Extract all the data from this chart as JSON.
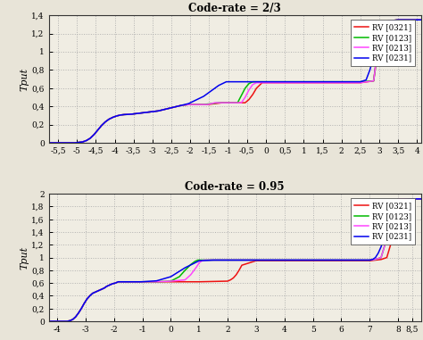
{
  "plot1": {
    "title": "Code-rate = 2/3",
    "xlim": [
      -5.75,
      4.1
    ],
    "ylim": [
      0,
      1.4
    ],
    "xticks": [
      -5.5,
      -5,
      -4.5,
      -4,
      -3.5,
      -3,
      -2.5,
      -2,
      -1.5,
      -1,
      -0.5,
      0,
      0.5,
      1,
      1.5,
      2,
      2.5,
      3,
      3.5,
      4
    ],
    "xticklabels": [
      "-5,5",
      "-5",
      "-4,5",
      "-4",
      "-3,5",
      "-3",
      "-2,5",
      "-2",
      "-1,5",
      "-1",
      "-0,5",
      "0",
      "0,5",
      "1",
      "1,5",
      "2",
      "2,5",
      "3",
      "3,5",
      "4"
    ],
    "yticks": [
      0,
      0.2,
      0.4,
      0.6,
      0.8,
      1.0,
      1.2,
      1.4
    ],
    "yticklabels": [
      "0",
      "0,2",
      "0,4",
      "0,6",
      "0,8",
      "1",
      "1,2",
      "1,4"
    ],
    "curves": {
      "RV [0321]": {
        "color": "#ee1111",
        "x": [
          -5.75,
          -5.05,
          -4.95,
          -4.85,
          -4.75,
          -4.65,
          -4.55,
          -4.45,
          -4.35,
          -4.25,
          -4.15,
          -4.05,
          -3.95,
          -3.85,
          -3.75,
          -3.65,
          -3.55,
          -3.45,
          -3.35,
          -3.25,
          -3.15,
          -3.05,
          -2.95,
          -2.85,
          -2.75,
          -2.65,
          -2.55,
          -2.45,
          -2.35,
          -2.25,
          -2.15,
          -2.05,
          -1.95,
          -1.85,
          -1.75,
          -1.65,
          -1.55,
          -1.45,
          -1.35,
          -1.25,
          -1.15,
          -1.05,
          -0.95,
          -0.85,
          -0.75,
          -0.65,
          -0.55,
          -0.45,
          -0.35,
          -0.25,
          -0.1,
          0.5,
          1.0,
          2.0,
          2.5,
          2.85,
          2.95,
          3.1,
          3.5,
          4.1
        ],
        "y": [
          0.0,
          0.0,
          0.005,
          0.01,
          0.025,
          0.05,
          0.09,
          0.14,
          0.19,
          0.23,
          0.26,
          0.28,
          0.295,
          0.305,
          0.31,
          0.312,
          0.315,
          0.32,
          0.325,
          0.33,
          0.335,
          0.34,
          0.345,
          0.35,
          0.36,
          0.37,
          0.38,
          0.39,
          0.4,
          0.41,
          0.415,
          0.42,
          0.42,
          0.42,
          0.42,
          0.42,
          0.42,
          0.425,
          0.43,
          0.435,
          0.44,
          0.44,
          0.44,
          0.44,
          0.44,
          0.44,
          0.44,
          0.475,
          0.53,
          0.6,
          0.66,
          0.66,
          0.66,
          0.66,
          0.66,
          0.68,
          1.0,
          1.33,
          1.35,
          1.35
        ]
      },
      "RV [0123]": {
        "color": "#00bb00",
        "x": [
          -5.75,
          -5.05,
          -4.95,
          -4.85,
          -4.75,
          -4.65,
          -4.55,
          -4.45,
          -4.35,
          -4.25,
          -4.15,
          -4.05,
          -3.95,
          -3.85,
          -3.75,
          -3.65,
          -3.55,
          -3.45,
          -3.35,
          -3.25,
          -3.15,
          -3.05,
          -2.95,
          -2.85,
          -2.75,
          -2.65,
          -2.55,
          -2.45,
          -2.35,
          -2.25,
          -2.15,
          -2.05,
          -1.95,
          -1.85,
          -1.75,
          -1.65,
          -1.55,
          -1.45,
          -1.35,
          -1.25,
          -1.15,
          -1.05,
          -0.95,
          -0.85,
          -0.75,
          -0.65,
          -0.55,
          -0.45,
          -0.35,
          -0.1,
          0.5,
          1.0,
          2.0,
          2.5,
          2.85,
          2.95,
          3.1,
          3.5,
          4.1
        ],
        "y": [
          0.0,
          0.0,
          0.005,
          0.01,
          0.025,
          0.05,
          0.09,
          0.14,
          0.19,
          0.23,
          0.26,
          0.28,
          0.295,
          0.305,
          0.31,
          0.312,
          0.315,
          0.32,
          0.325,
          0.33,
          0.335,
          0.34,
          0.345,
          0.35,
          0.36,
          0.37,
          0.38,
          0.39,
          0.4,
          0.41,
          0.415,
          0.42,
          0.42,
          0.42,
          0.42,
          0.42,
          0.425,
          0.43,
          0.435,
          0.44,
          0.44,
          0.44,
          0.44,
          0.44,
          0.44,
          0.52,
          0.6,
          0.65,
          0.67,
          0.67,
          0.67,
          0.67,
          0.67,
          0.67,
          0.68,
          1.0,
          1.33,
          1.35,
          1.35
        ]
      },
      "RV [0213]": {
        "color": "#ff44ff",
        "x": [
          -5.75,
          -5.05,
          -4.95,
          -4.85,
          -4.75,
          -4.65,
          -4.55,
          -4.45,
          -4.35,
          -4.25,
          -4.15,
          -4.05,
          -3.95,
          -3.85,
          -3.75,
          -3.65,
          -3.55,
          -3.45,
          -3.35,
          -3.25,
          -3.15,
          -3.05,
          -2.95,
          -2.85,
          -2.75,
          -2.65,
          -2.55,
          -2.45,
          -2.35,
          -2.25,
          -2.15,
          -2.05,
          -1.95,
          -1.85,
          -1.75,
          -1.65,
          -1.55,
          -1.45,
          -1.35,
          -1.25,
          -1.15,
          -1.05,
          -0.95,
          -0.85,
          -0.75,
          -0.65,
          -0.55,
          -0.45,
          -0.35,
          -0.25,
          -0.1,
          0.5,
          1.0,
          2.0,
          2.5,
          2.85,
          2.95,
          3.1,
          3.5,
          4.1
        ],
        "y": [
          0.0,
          0.0,
          0.005,
          0.01,
          0.025,
          0.05,
          0.09,
          0.14,
          0.19,
          0.23,
          0.26,
          0.28,
          0.295,
          0.305,
          0.31,
          0.312,
          0.315,
          0.32,
          0.325,
          0.33,
          0.335,
          0.34,
          0.345,
          0.35,
          0.36,
          0.37,
          0.38,
          0.39,
          0.4,
          0.41,
          0.415,
          0.42,
          0.42,
          0.42,
          0.42,
          0.42,
          0.42,
          0.43,
          0.44,
          0.44,
          0.44,
          0.44,
          0.44,
          0.44,
          0.44,
          0.44,
          0.5,
          0.58,
          0.64,
          0.66,
          0.66,
          0.66,
          0.66,
          0.66,
          0.66,
          0.68,
          1.0,
          1.33,
          1.35,
          1.35
        ]
      },
      "RV [0231]": {
        "color": "#0000ee",
        "x": [
          -5.75,
          -5.05,
          -4.95,
          -4.85,
          -4.75,
          -4.65,
          -4.55,
          -4.45,
          -4.35,
          -4.25,
          -4.15,
          -4.05,
          -3.95,
          -3.85,
          -3.75,
          -3.65,
          -3.55,
          -3.45,
          -3.35,
          -3.25,
          -3.15,
          -3.05,
          -2.95,
          -2.85,
          -2.75,
          -2.65,
          -2.55,
          -2.45,
          -2.35,
          -2.25,
          -2.15,
          -2.05,
          -1.95,
          -1.85,
          -1.75,
          -1.65,
          -1.55,
          -1.45,
          -1.35,
          -1.25,
          -1.15,
          -1.05,
          -0.95,
          -0.85,
          -0.75,
          -0.65,
          -0.55,
          -0.45,
          -0.35,
          -0.1,
          0.5,
          1.0,
          2.0,
          2.5,
          2.65,
          2.75,
          2.85,
          2.95,
          3.1,
          3.5,
          4.1
        ],
        "y": [
          0.0,
          0.0,
          0.005,
          0.01,
          0.025,
          0.05,
          0.09,
          0.14,
          0.19,
          0.23,
          0.26,
          0.28,
          0.295,
          0.305,
          0.31,
          0.312,
          0.315,
          0.32,
          0.325,
          0.33,
          0.335,
          0.34,
          0.345,
          0.35,
          0.36,
          0.37,
          0.38,
          0.39,
          0.4,
          0.41,
          0.42,
          0.43,
          0.45,
          0.47,
          0.49,
          0.51,
          0.54,
          0.57,
          0.6,
          0.63,
          0.65,
          0.67,
          0.67,
          0.67,
          0.67,
          0.67,
          0.67,
          0.67,
          0.67,
          0.67,
          0.67,
          0.67,
          0.67,
          0.67,
          0.69,
          0.8,
          0.95,
          1.15,
          1.33,
          1.35,
          1.35
        ]
      }
    }
  },
  "plot2": {
    "title": "Code-rate = 0.95",
    "xlim": [
      -4.3,
      8.8
    ],
    "ylim": [
      0,
      2.0
    ],
    "xticks": [
      -4,
      -3,
      -2,
      -1,
      0,
      1,
      2,
      3,
      4,
      5,
      6,
      7,
      8,
      8.5
    ],
    "xticklabels": [
      "-4",
      "-3",
      "-2",
      "-1",
      "0",
      "1",
      "2",
      "3",
      "4",
      "5",
      "6",
      "7",
      "8",
      "8,5"
    ],
    "yticks": [
      0,
      0.2,
      0.4,
      0.6,
      0.8,
      1.0,
      1.2,
      1.4,
      1.6,
      1.8,
      2.0
    ],
    "yticklabels": [
      "0",
      "0,2",
      "0,4",
      "0,6",
      "0,8",
      "1",
      "1,2",
      "1,4",
      "1,6",
      "1,8",
      "2"
    ],
    "curves": {
      "RV [0321]": {
        "color": "#ee1111",
        "x": [
          -4.3,
          -3.65,
          -3.55,
          -3.45,
          -3.35,
          -3.25,
          -3.15,
          -3.05,
          -2.95,
          -2.85,
          -2.75,
          -2.65,
          -2.55,
          -2.45,
          -2.35,
          -2.25,
          -2.15,
          -2.05,
          -1.95,
          -1.85,
          -1.75,
          -1.65,
          -1.55,
          -1.45,
          -1.35,
          -1.25,
          -1.15,
          -1.05,
          -0.5,
          0.0,
          0.5,
          1.0,
          1.5,
          2.0,
          2.1,
          2.2,
          2.3,
          2.4,
          2.5,
          3.0,
          4.0,
          5.0,
          6.0,
          7.0,
          7.2,
          7.4,
          7.6,
          7.8,
          8.0,
          8.5,
          8.8
        ],
        "y": [
          0.0,
          0.0,
          0.01,
          0.03,
          0.07,
          0.13,
          0.2,
          0.28,
          0.35,
          0.4,
          0.44,
          0.46,
          0.48,
          0.5,
          0.52,
          0.55,
          0.57,
          0.59,
          0.6,
          0.62,
          0.62,
          0.62,
          0.62,
          0.62,
          0.62,
          0.62,
          0.62,
          0.62,
          0.62,
          0.62,
          0.62,
          0.62,
          0.625,
          0.63,
          0.65,
          0.68,
          0.73,
          0.8,
          0.88,
          0.95,
          0.95,
          0.95,
          0.95,
          0.95,
          0.96,
          0.97,
          1.0,
          1.3,
          1.8,
          1.92,
          1.92
        ]
      },
      "RV [0123]": {
        "color": "#00bb00",
        "x": [
          -4.3,
          -3.65,
          -3.55,
          -3.45,
          -3.35,
          -3.25,
          -3.15,
          -3.05,
          -2.95,
          -2.85,
          -2.75,
          -2.65,
          -2.55,
          -2.45,
          -2.35,
          -2.25,
          -2.15,
          -2.05,
          -1.95,
          -1.85,
          -1.75,
          -1.65,
          -1.55,
          -1.45,
          -1.35,
          -1.25,
          -1.15,
          -1.05,
          -0.5,
          0.0,
          0.3,
          0.5,
          0.7,
          0.85,
          0.95,
          1.05,
          1.5,
          2.0,
          3.0,
          4.0,
          5.0,
          6.0,
          7.0,
          7.2,
          7.4,
          7.6,
          7.8,
          8.0,
          8.5,
          8.8
        ],
        "y": [
          0.0,
          0.0,
          0.01,
          0.03,
          0.07,
          0.13,
          0.2,
          0.28,
          0.35,
          0.4,
          0.44,
          0.46,
          0.48,
          0.5,
          0.52,
          0.55,
          0.57,
          0.59,
          0.6,
          0.62,
          0.62,
          0.62,
          0.62,
          0.62,
          0.62,
          0.62,
          0.62,
          0.62,
          0.62,
          0.63,
          0.7,
          0.8,
          0.89,
          0.94,
          0.96,
          0.96,
          0.96,
          0.96,
          0.96,
          0.96,
          0.96,
          0.96,
          0.96,
          0.97,
          1.0,
          1.3,
          1.8,
          1.92,
          1.92,
          1.92
        ]
      },
      "RV [0213]": {
        "color": "#ff44ff",
        "x": [
          -4.3,
          -3.65,
          -3.55,
          -3.45,
          -3.35,
          -3.25,
          -3.15,
          -3.05,
          -2.95,
          -2.85,
          -2.75,
          -2.65,
          -2.55,
          -2.45,
          -2.35,
          -2.25,
          -2.15,
          -2.05,
          -1.95,
          -1.85,
          -1.75,
          -1.65,
          -1.55,
          -1.45,
          -1.35,
          -1.25,
          -1.15,
          -1.05,
          -0.5,
          0.0,
          0.5,
          0.7,
          0.9,
          1.0,
          1.1,
          1.2,
          1.5,
          2.0,
          3.0,
          4.0,
          5.0,
          6.0,
          7.0,
          7.2,
          7.4,
          7.6,
          7.8,
          8.0,
          8.5,
          8.8
        ],
        "y": [
          0.0,
          0.0,
          0.01,
          0.03,
          0.07,
          0.13,
          0.2,
          0.28,
          0.35,
          0.4,
          0.44,
          0.46,
          0.48,
          0.5,
          0.52,
          0.55,
          0.57,
          0.59,
          0.6,
          0.62,
          0.62,
          0.62,
          0.62,
          0.62,
          0.62,
          0.62,
          0.62,
          0.62,
          0.62,
          0.63,
          0.65,
          0.73,
          0.85,
          0.92,
          0.95,
          0.96,
          0.96,
          0.96,
          0.96,
          0.96,
          0.96,
          0.96,
          0.96,
          0.97,
          1.0,
          1.3,
          1.8,
          1.92,
          1.92,
          1.92
        ]
      },
      "RV [0231]": {
        "color": "#0000ee",
        "x": [
          -4.3,
          -3.65,
          -3.55,
          -3.45,
          -3.35,
          -3.25,
          -3.15,
          -3.05,
          -2.95,
          -2.85,
          -2.75,
          -2.65,
          -2.55,
          -2.45,
          -2.35,
          -2.25,
          -2.15,
          -2.05,
          -1.95,
          -1.85,
          -1.75,
          -1.65,
          -1.55,
          -1.45,
          -1.35,
          -1.25,
          -1.15,
          -1.05,
          -0.5,
          0.0,
          0.5,
          1.0,
          1.5,
          2.0,
          3.0,
          4.0,
          5.0,
          6.0,
          7.0,
          7.1,
          7.2,
          7.3,
          7.4,
          7.5,
          7.6,
          7.7,
          7.8,
          7.9,
          8.0,
          8.5,
          8.8
        ],
        "y": [
          0.0,
          0.0,
          0.01,
          0.03,
          0.07,
          0.13,
          0.2,
          0.28,
          0.35,
          0.4,
          0.44,
          0.46,
          0.48,
          0.5,
          0.52,
          0.55,
          0.57,
          0.59,
          0.6,
          0.62,
          0.62,
          0.62,
          0.62,
          0.62,
          0.62,
          0.62,
          0.62,
          0.62,
          0.635,
          0.7,
          0.84,
          0.95,
          0.96,
          0.96,
          0.96,
          0.96,
          0.96,
          0.96,
          0.96,
          0.97,
          1.0,
          1.07,
          1.17,
          1.3,
          1.45,
          1.6,
          1.72,
          1.82,
          1.9,
          1.92,
          1.92
        ]
      }
    }
  },
  "fig_bgcolor": "#e8e4d8",
  "axes_bgcolor": "#f0ede3",
  "grid_color": "#aaaaaa",
  "ylabel": "Tput",
  "legend_labels": [
    "RV [0321]",
    "RV [0123]",
    "RV [0213]",
    "RV [0231]"
  ],
  "legend_colors": [
    "#ee1111",
    "#00bb00",
    "#ff44ff",
    "#0000ee"
  ]
}
